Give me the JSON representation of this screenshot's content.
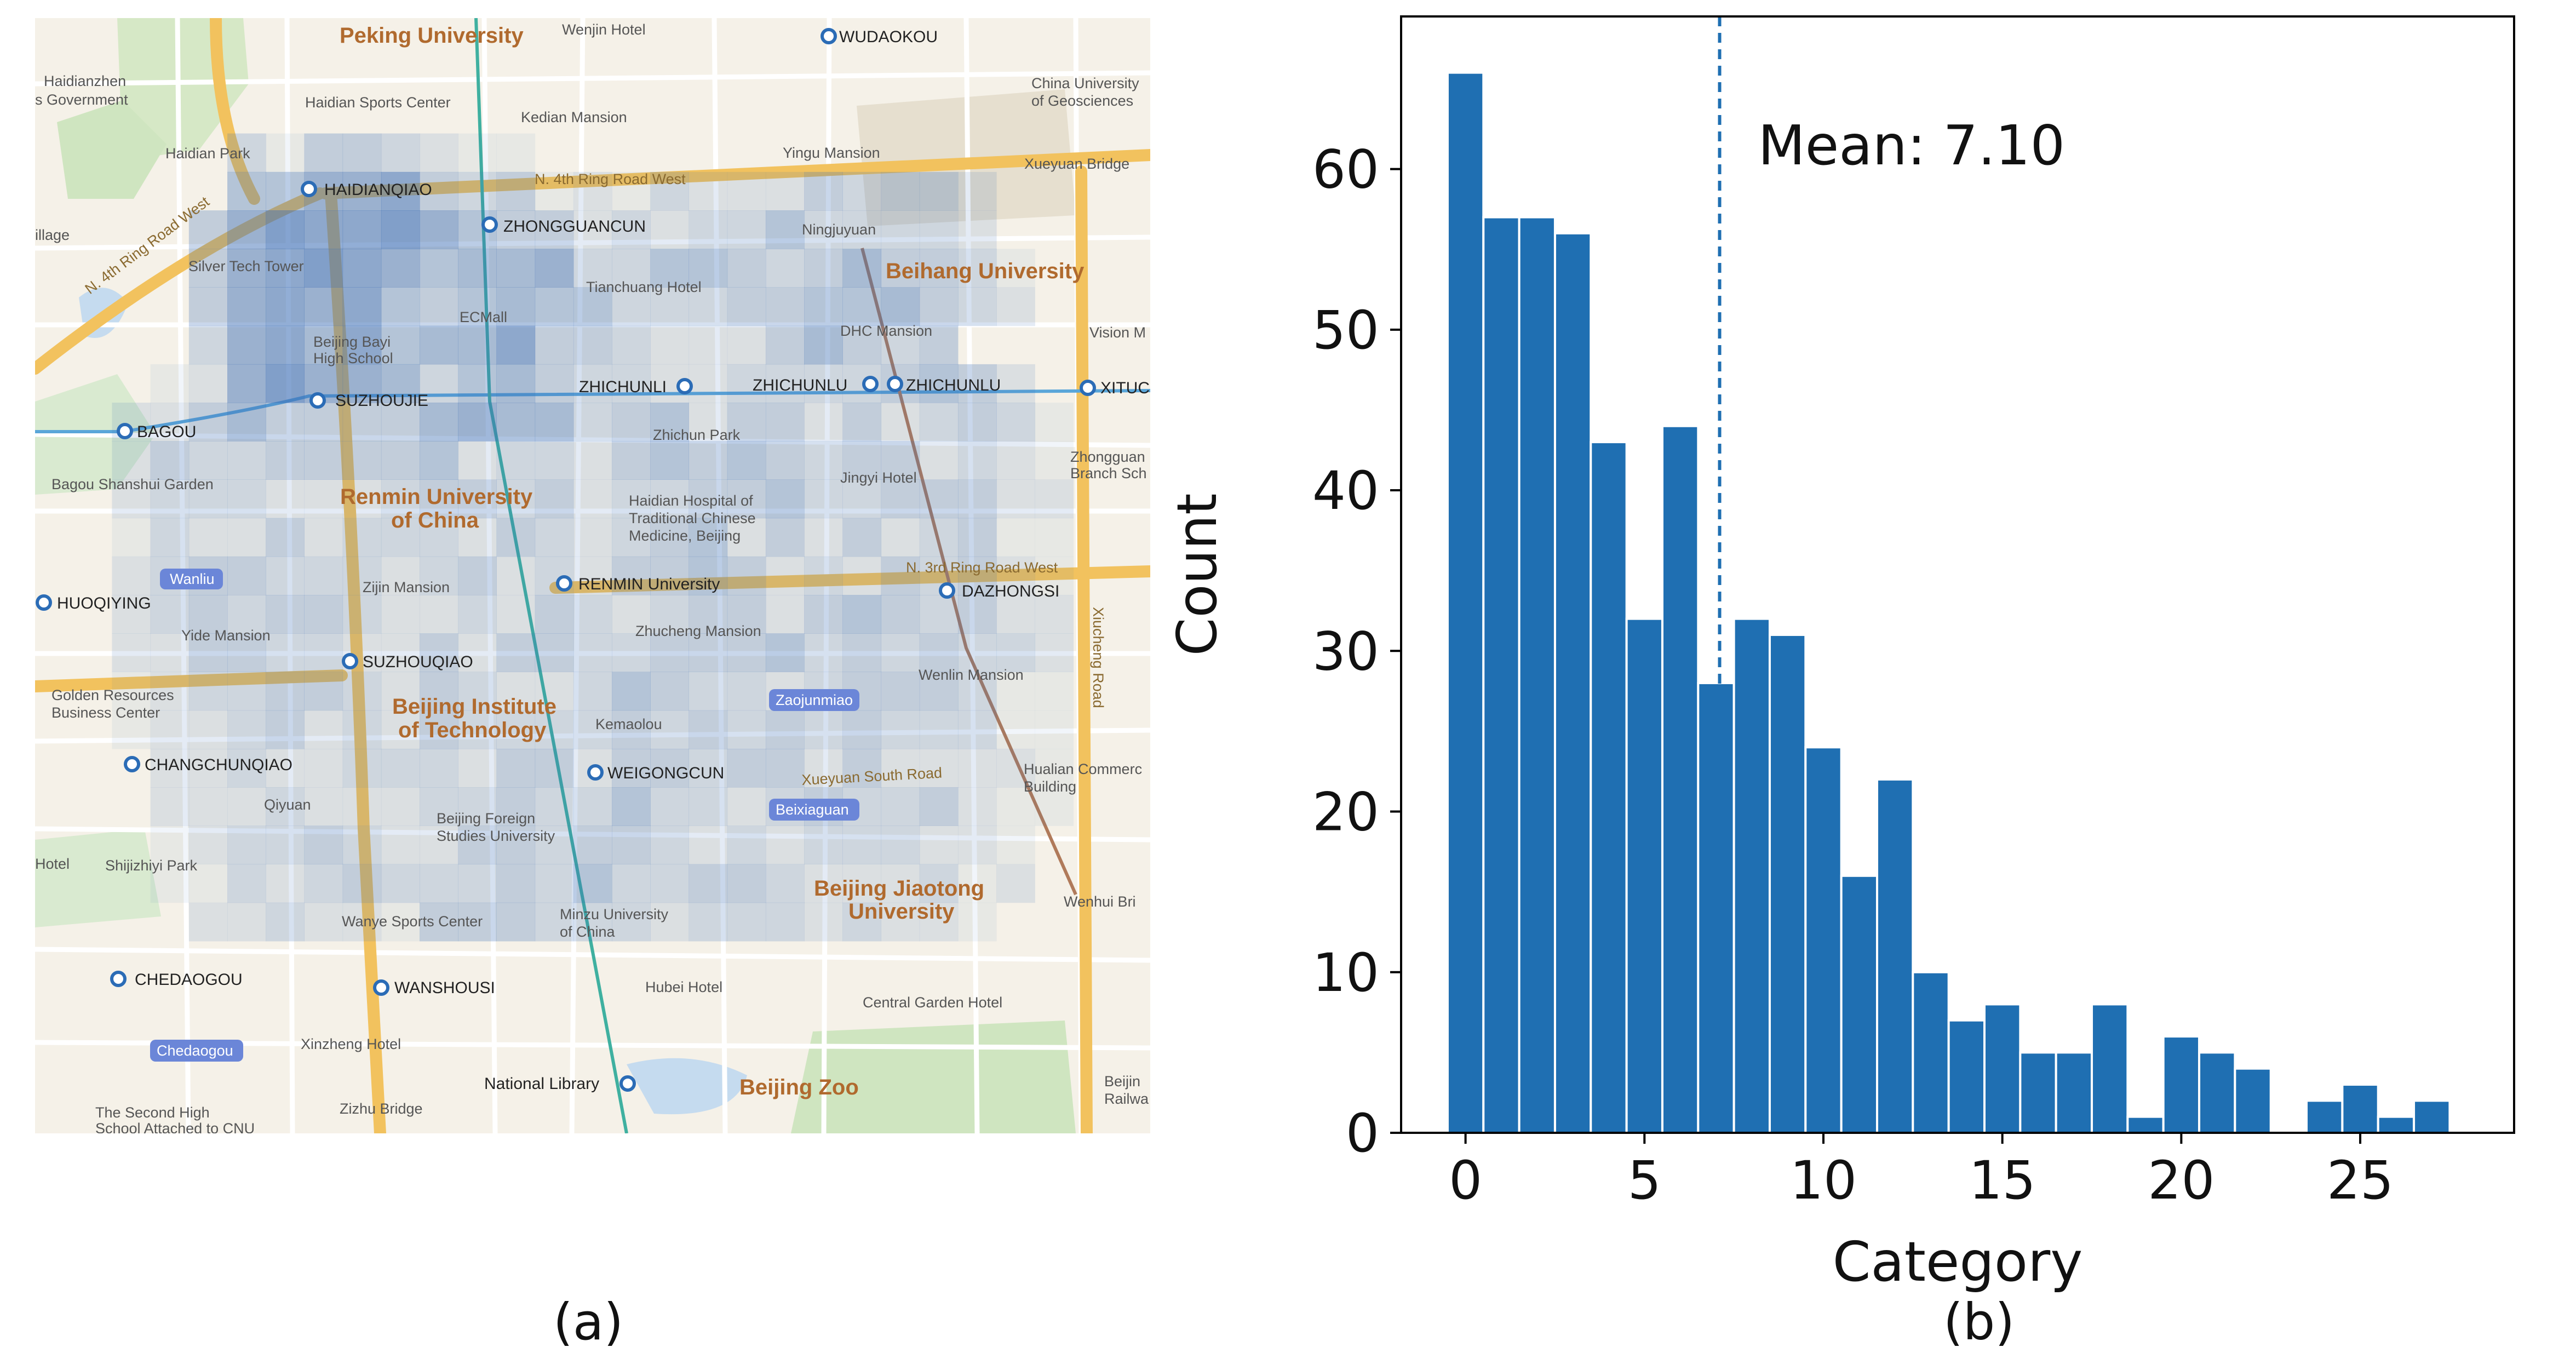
{
  "captions": {
    "a": "(a)",
    "b": "(b)"
  },
  "colors": {
    "bar": "#1f6fb2",
    "heat": "#3d6fb6",
    "map_bg": "#f5f1e8",
    "major_road": "#f2c25e",
    "minor_road": "#ffffff",
    "park": "#cfe5c0",
    "water": "#c5dbef",
    "label_brown": "#b06a2e",
    "metro_blue": "#2b6cb6"
  },
  "map": {
    "labels": {
      "peking_university": "Peking University",
      "wenjin_hotel": "Wenjin Hotel",
      "wudaokou": "WUDAOKOU",
      "haidianzhen": "Haidianzhen",
      "s_government": "s Government",
      "haidian_sports_center": "Haidian Sports Center",
      "china_univ_geosciences_1": "China University",
      "china_univ_geosciences_2": "of Geosciences",
      "kedian_mansion": "Kedian Mansion",
      "haidian_park": "Haidian Park",
      "yingu_mansion": "Yingu Mansion",
      "xueyuan_bridge": "Xueyuan Bridge",
      "haidianqiao": "HAIDIANQIAO",
      "n4_ring_road_west": "N. 4th Ring Road West",
      "n4_ring_road_west_diag": "N. 4th Ring Road West",
      "illage": "illage",
      "zhongguancun": "ZHONGGUANCUN",
      "ningjuyuan": "Ningjuyuan",
      "silver_tech_tower": "Silver Tech Tower",
      "tianchuang_hotel": "Tianchuang Hotel",
      "beihang_university": "Beihang University",
      "ecmall": "ECMall",
      "beijing_bayi_1": "Beijing Bayi",
      "beijing_bayi_2": "High School",
      "dhc_mansion": "DHC Mansion",
      "vision_m": "Vision M",
      "suzhoujie": "SUZHOUJIE",
      "zhichunli": "ZHICHUNLI",
      "zhichunlu_1": "ZHICHUNLU",
      "zhichunlu_2": "ZHICHUNLU",
      "xitu": "XITUC",
      "bagou": "BAGOU",
      "zhichun_park": "Zhichun Park",
      "zhongguan_branch_1": "Zhongguan",
      "zhongguan_branch_2": "Branch Sch",
      "bagou_shanshui_garden": "Bagou Shanshui Garden",
      "renmin_university_1": "Renmin University",
      "renmin_university_2": "of China",
      "jingyi_hotel": "Jingyi Hotel",
      "haidian_hospital_1": "Haidian Hospital of",
      "haidian_hospital_2": "Traditional Chinese",
      "haidian_hospital_3": "Medicine, Beijing",
      "wanliu": "Wanliu",
      "n3_ring_road_west": "N. 3rd Ring Road West",
      "zijin_mansion": "Zijin Mansion",
      "renmin_university_station": "RENMIN University",
      "dazhongsi": "DAZHONGSI",
      "huoqiying": "HUOQIYING",
      "yide_mansion": "Yide Mansion",
      "zhucheng_mansion": "Zhucheng Mansion",
      "xiucheng_road": "Xiucheng Road",
      "suzhouqiao": "SUZHOUQIAO",
      "wenlin_mansion": "Wenlin Mansion",
      "golden_resources_1": "Golden Resources",
      "golden_resources_2": "Business Center",
      "bit_1": "Beijing Institute",
      "bit_2": "of Technology",
      "zaojunmiao": "Zaojunmiao",
      "kemaolou": "Kemaolou",
      "changchunqiao": "CHANGCHUNQIAO",
      "weigongcun": "WEIGONGCUN",
      "xueyuan_south_road": "Xueyuan South Road",
      "hualian_1": "Hualian Commerc",
      "hualian_2": "Building",
      "qiyuan": "Qiyuan",
      "beixiaguan": "Beixiaguan",
      "bfsu_1": "Beijing Foreign",
      "bfsu_2": "Studies University",
      "hotel": "Hotel",
      "shijizhiyi_park": "Shijizhiyi Park",
      "bjtu_1": "Beijing Jiaotong",
      "bjtu_2": "University",
      "wenhui_bri": "Wenhui Bri",
      "wanye_sports_center": "Wanye Sports Center",
      "minzu_1": "Minzu University",
      "minzu_2": "of China",
      "chedaogou": "CHEDAOGOU",
      "wanshousi": "WANSHOUSI",
      "hubei_hotel": "Hubei Hotel",
      "central_garden_hotel": "Central Garden Hotel",
      "chedaogou_tag": "Chedaogou",
      "xinzheng_hotel": "Xinzheng Hotel",
      "national_library": "National Library",
      "beijing_zoo": "Beijing Zoo",
      "beijing_railway_1": "Beijin",
      "beijing_railway_2": "Railwa",
      "second_high_1": "The Second High",
      "second_high_2": "School Attached to CNU",
      "zizhu_bridge": "Zizhu Bridge"
    },
    "heat_rows": [
      "00000000000000000000000000000",
      "00000000000000000000000000000",
      "00000000000000000000000000000",
      "00000314432110000000000000000",
      "00000557784341213222434420000",
      "00004798897544232335333320000",
      "00004789875667335543464431000",
      "00004787854565533344556432000",
      "00003786856684432224643400000",
      "00012797763564332233334542000",
      "00224644446766345244242343100",
      "00243344445233245454344232100",
      "00233322234434233445334442200",
      "00132242333243234524242341100",
      "00234433323423244542324342100",
      "00234344322324323442454342200",
      "00224433224244334445343433200",
      "00123344324322354332344431100",
      "00122342324333343434343331100",
      "00022322333244244344242222100",
      "00022232223343353323433421100",
      "00012334322443443232333221000",
      "00011323433343533443222312000",
      "00002232214443332333232210000",
      "00000000000000000000000000000",
      "00000000000000000000000000000",
      "00000000000000000000000000000",
      "00000000000000000000000000000",
      "00000000000000000000000000000"
    ]
  },
  "chart_data": {
    "type": "bar",
    "xlabel": "Category",
    "ylabel": "Count",
    "x": [
      0,
      1,
      2,
      3,
      4,
      5,
      6,
      7,
      8,
      9,
      10,
      11,
      12,
      13,
      14,
      15,
      16,
      17,
      18,
      19,
      20,
      21,
      22,
      23,
      24,
      25,
      26,
      27,
      28
    ],
    "values": [
      66,
      57,
      57,
      56,
      43,
      32,
      44,
      28,
      32,
      31,
      24,
      16,
      22,
      10,
      7,
      8,
      5,
      5,
      8,
      1,
      6,
      5,
      4,
      0,
      2,
      3,
      1,
      2,
      0
    ],
    "xlim": [
      -1.8,
      29.3
    ],
    "ylim": [
      0,
      69.5
    ],
    "xticks": [
      0,
      5,
      10,
      15,
      20,
      25
    ],
    "yticks": [
      0,
      10,
      20,
      30,
      40,
      50,
      60
    ],
    "mean": 7.1,
    "mean_label": "Mean: 7.10",
    "grid": false
  }
}
